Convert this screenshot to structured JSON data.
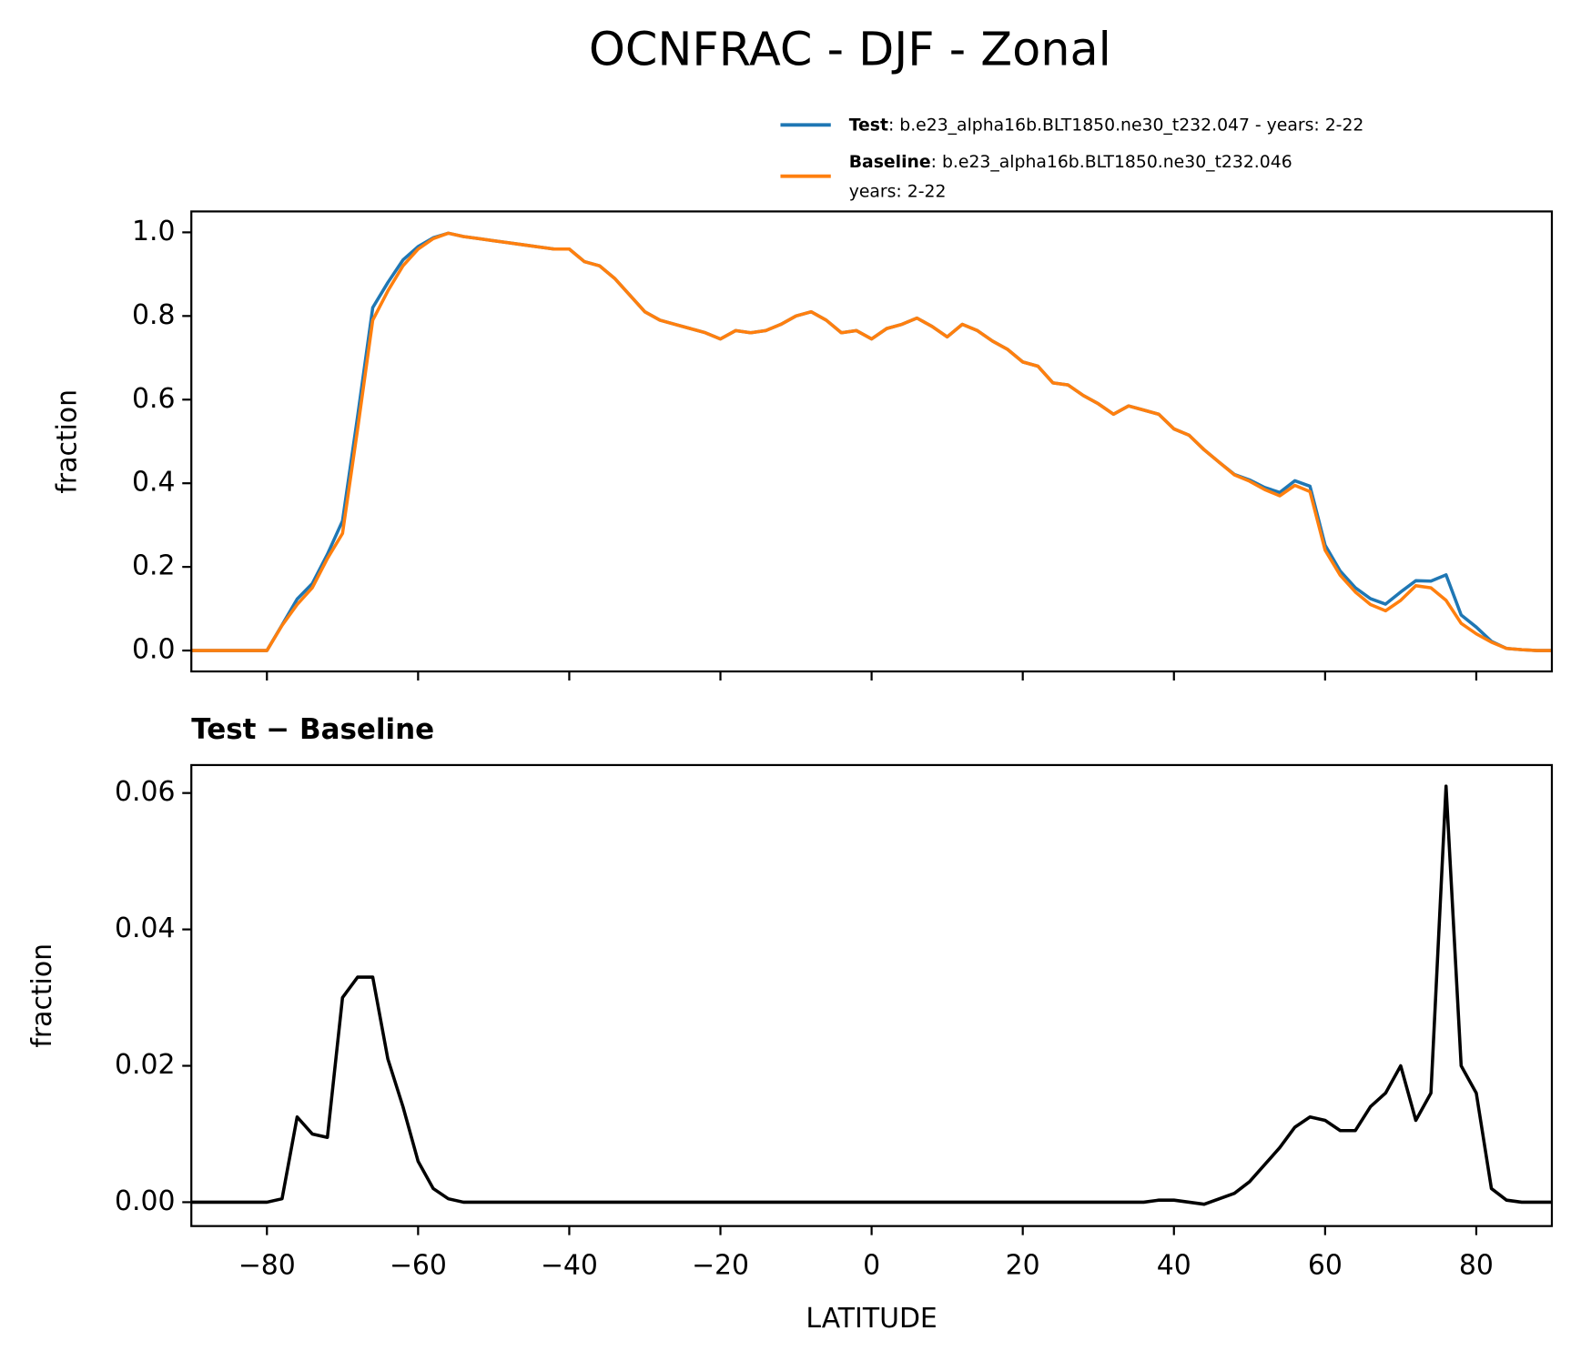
{
  "title": "OCNFRAC - DJF - Zonal",
  "chart_data": [
    {
      "type": "line",
      "ylabel": "fraction",
      "show_xtick_labels": false,
      "x": [
        -90,
        -88,
        -86,
        -84,
        -82,
        -80,
        -78,
        -76,
        -74,
        -72,
        -70,
        -68,
        -66,
        -64,
        -62,
        -60,
        -58,
        -56,
        -54,
        -52,
        -50,
        -48,
        -46,
        -44,
        -42,
        -40,
        -38,
        -36,
        -34,
        -32,
        -30,
        -28,
        -26,
        -24,
        -22,
        -20,
        -18,
        -16,
        -14,
        -12,
        -10,
        -8,
        -6,
        -4,
        -2,
        0,
        2,
        4,
        6,
        8,
        10,
        12,
        14,
        16,
        18,
        20,
        22,
        24,
        26,
        28,
        30,
        32,
        34,
        36,
        38,
        40,
        42,
        44,
        46,
        48,
        50,
        52,
        54,
        56,
        58,
        60,
        62,
        64,
        66,
        68,
        70,
        72,
        74,
        76,
        78,
        80,
        82,
        84,
        86,
        88,
        90
      ],
      "series": [
        {
          "name": "Test",
          "description": [
            ": b.e23_alpha16b.BLT1850.ne30_t232.047 - years: 2-22"
          ],
          "color": "#1f77b4",
          "values": [
            0,
            0,
            0,
            0,
            0,
            0,
            0.061,
            0.123,
            0.16,
            0.23,
            0.31,
            0.56,
            0.82,
            0.88,
            0.934,
            0.966,
            0.987,
            0.998,
            0.99,
            0.985,
            0.98,
            0.975,
            0.97,
            0.965,
            0.96,
            0.96,
            0.93,
            0.92,
            0.89,
            0.85,
            0.81,
            0.79,
            0.78,
            0.77,
            0.76,
            0.745,
            0.765,
            0.76,
            0.765,
            0.78,
            0.8,
            0.81,
            0.79,
            0.76,
            0.765,
            0.745,
            0.77,
            0.78,
            0.795,
            0.775,
            0.75,
            0.78,
            0.765,
            0.74,
            0.72,
            0.69,
            0.68,
            0.64,
            0.635,
            0.61,
            0.59,
            0.565,
            0.585,
            0.575,
            0.565,
            0.53,
            0.515,
            0.48,
            0.45,
            0.421,
            0.408,
            0.39,
            0.378,
            0.406,
            0.393,
            0.252,
            0.19,
            0.15,
            0.124,
            0.111,
            0.14,
            0.167,
            0.166,
            0.181,
            0.085,
            0.056,
            0.022,
            0.005,
            0.002,
            0,
            0
          ]
        },
        {
          "name": "Baseline",
          "description": [
            ": b.e23_alpha16b.BLT1850.ne30_t232.046",
            "years: 2-22"
          ],
          "color": "#ff7f0e",
          "values": [
            0,
            0,
            0,
            0,
            0,
            0,
            0.06,
            0.11,
            0.15,
            0.22,
            0.28,
            0.53,
            0.79,
            0.86,
            0.92,
            0.96,
            0.985,
            0.998,
            0.99,
            0.985,
            0.98,
            0.975,
            0.97,
            0.965,
            0.96,
            0.96,
            0.93,
            0.92,
            0.89,
            0.85,
            0.81,
            0.79,
            0.78,
            0.77,
            0.76,
            0.745,
            0.765,
            0.76,
            0.765,
            0.78,
            0.8,
            0.81,
            0.79,
            0.76,
            0.765,
            0.745,
            0.77,
            0.78,
            0.795,
            0.775,
            0.75,
            0.78,
            0.765,
            0.74,
            0.72,
            0.69,
            0.68,
            0.64,
            0.635,
            0.61,
            0.59,
            0.565,
            0.585,
            0.575,
            0.565,
            0.53,
            0.515,
            0.48,
            0.45,
            0.42,
            0.405,
            0.385,
            0.37,
            0.395,
            0.38,
            0.24,
            0.18,
            0.14,
            0.11,
            0.095,
            0.12,
            0.155,
            0.15,
            0.12,
            0.065,
            0.04,
            0.02,
            0.005,
            0.002,
            0,
            0
          ]
        }
      ],
      "xlim": [
        -90,
        90
      ],
      "xticks": [
        {
          "value": -80,
          "label": "−80"
        },
        {
          "value": -60,
          "label": "−60"
        },
        {
          "value": -40,
          "label": "−40"
        },
        {
          "value": -20,
          "label": "−20"
        },
        0,
        20,
        40,
        60,
        80
      ],
      "ylim": [
        -0.05,
        1.05
      ],
      "yticks": [
        {
          "value": 0,
          "label": "0.0"
        },
        0.2,
        0.4,
        0.6,
        0.8,
        {
          "value": 1,
          "label": "1.0"
        }
      ]
    },
    {
      "type": "line",
      "title": "Test − Baseline",
      "ylabel": "fraction",
      "xlabel": "LATITUDE",
      "show_xtick_labels": true,
      "x": [
        -90,
        -88,
        -86,
        -84,
        -82,
        -80,
        -78,
        -76,
        -74,
        -72,
        -70,
        -68,
        -66,
        -64,
        -62,
        -60,
        -58,
        -56,
        -54,
        -52,
        -50,
        -48,
        -46,
        -44,
        -42,
        -40,
        -38,
        -36,
        -34,
        -32,
        -30,
        -28,
        -26,
        -24,
        -22,
        -20,
        -18,
        -16,
        -14,
        -12,
        -10,
        -8,
        -6,
        -4,
        -2,
        0,
        2,
        4,
        6,
        8,
        10,
        12,
        14,
        16,
        18,
        20,
        22,
        24,
        26,
        28,
        30,
        32,
        34,
        36,
        38,
        40,
        42,
        44,
        46,
        48,
        50,
        52,
        54,
        56,
        58,
        60,
        62,
        64,
        66,
        68,
        70,
        72,
        74,
        76,
        78,
        80,
        82,
        84,
        86,
        88,
        90
      ],
      "series": [
        {
          "name": "Test − Baseline",
          "color": "#000000",
          "values": [
            0,
            0,
            0,
            0,
            0,
            0,
            0.0005,
            0.0125,
            0.01,
            0.0095,
            0.03,
            0.033,
            0.033,
            0.021,
            0.014,
            0.006,
            0.002,
            0.0005,
            0,
            0,
            0,
            0,
            0,
            0,
            0,
            0,
            0,
            0,
            0,
            0,
            0,
            0,
            0,
            0,
            0,
            0,
            0,
            0,
            0,
            0,
            0,
            0,
            0,
            0,
            0,
            0,
            0,
            0,
            0,
            0,
            0,
            0,
            0,
            0,
            0,
            0,
            0,
            0,
            0,
            0,
            0,
            0,
            0,
            0,
            0.0003,
            0.0003,
            0,
            -0.0003,
            0.0005,
            0.0013,
            0.003,
            0.0055,
            0.008,
            0.011,
            0.0125,
            0.012,
            0.0105,
            0.0105,
            0.014,
            0.016,
            0.02,
            0.012,
            0.016,
            0.061,
            0.02,
            0.016,
            0.002,
            0.0003,
            0,
            0,
            0
          ]
        }
      ],
      "xlim": [
        -90,
        90
      ],
      "xticks": [
        {
          "value": -80,
          "label": "−80"
        },
        {
          "value": -60,
          "label": "−60"
        },
        {
          "value": -40,
          "label": "−40"
        },
        {
          "value": -20,
          "label": "−20"
        },
        0,
        20,
        40,
        60,
        80
      ],
      "ylim": [
        -0.0035,
        0.0641
      ],
      "yticks": [
        {
          "value": 0,
          "label": "0.00"
        },
        {
          "value": 0.02,
          "label": "0.02"
        },
        {
          "value": 0.04,
          "label": "0.04"
        },
        {
          "value": 0.06,
          "label": "0.06"
        }
      ]
    }
  ]
}
